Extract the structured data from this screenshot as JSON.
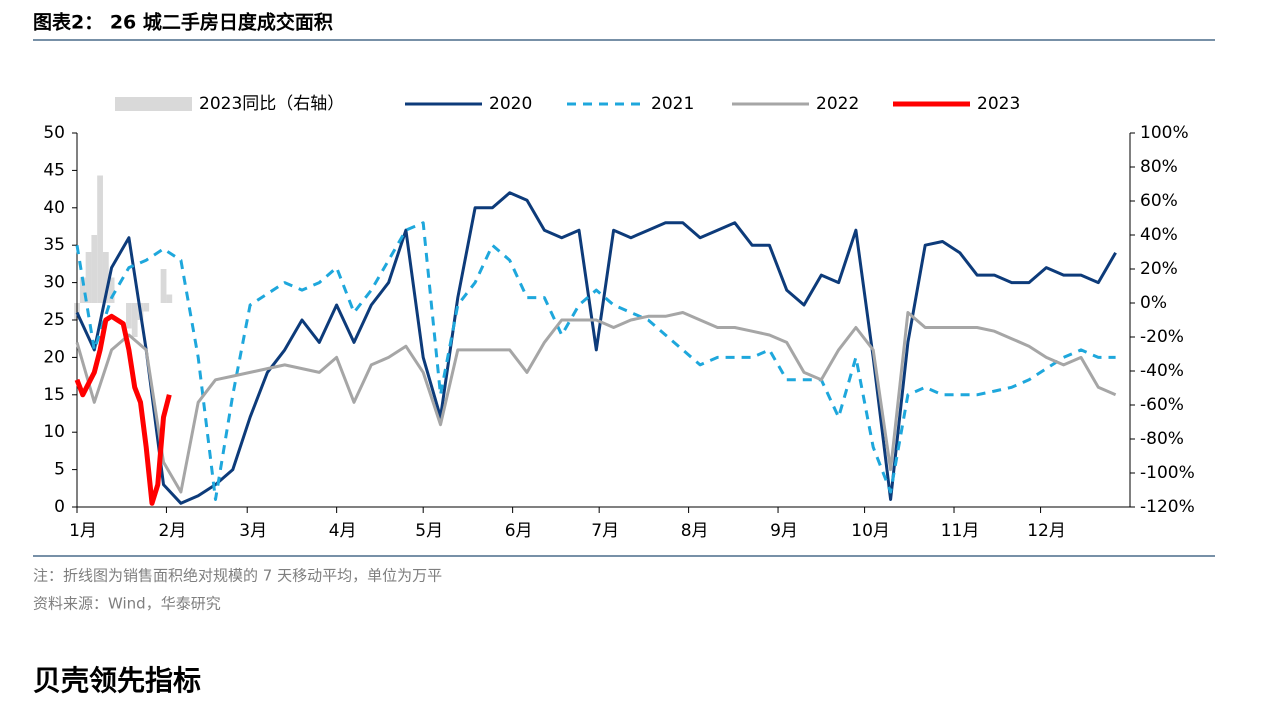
{
  "title": "图表2： 26 城二手房日度成交面积",
  "chart_data": {
    "type": "line",
    "xlim": [
      1,
      366
    ],
    "xticks": [
      {
        "value": 1,
        "label": "1月"
      },
      {
        "value": 32,
        "label": "2月"
      },
      {
        "value": 60,
        "label": "3月"
      },
      {
        "value": 91,
        "label": "4月"
      },
      {
        "value": 121,
        "label": "5月"
      },
      {
        "value": 152,
        "label": "6月"
      },
      {
        "value": 182,
        "label": "7月"
      },
      {
        "value": 213,
        "label": "8月"
      },
      {
        "value": 244,
        "label": "9月"
      },
      {
        "value": 274,
        "label": "10月"
      },
      {
        "value": 305,
        "label": "11月"
      },
      {
        "value": 335,
        "label": "12月"
      }
    ],
    "ylim": [
      0,
      50
    ],
    "yticks": [
      0,
      5,
      10,
      15,
      20,
      25,
      30,
      35,
      40,
      45,
      50
    ],
    "y2lim": [
      -120,
      100
    ],
    "y2ticks": [
      {
        "value": -120,
        "label": "-120%"
      },
      {
        "value": -100,
        "label": "-100%"
      },
      {
        "value": -80,
        "label": "-80%"
      },
      {
        "value": -60,
        "label": "-60%"
      },
      {
        "value": -40,
        "label": "-40%"
      },
      {
        "value": -20,
        "label": "-20%"
      },
      {
        "value": 0,
        "label": "0%"
      },
      {
        "value": 20,
        "label": "20%"
      },
      {
        "value": 40,
        "label": "40%"
      },
      {
        "value": 60,
        "label": "60%"
      },
      {
        "value": 80,
        "label": "80%"
      },
      {
        "value": 100,
        "label": "100%"
      }
    ],
    "x": [
      1,
      7,
      13,
      19,
      25,
      31,
      37,
      43,
      49,
      55,
      61,
      67,
      73,
      79,
      85,
      91,
      97,
      103,
      109,
      115,
      121,
      127,
      133,
      139,
      145,
      151,
      157,
      163,
      169,
      175,
      181,
      187,
      193,
      199,
      205,
      211,
      217,
      223,
      229,
      235,
      241,
      247,
      253,
      259,
      265,
      271,
      277,
      283,
      289,
      295,
      301,
      307,
      313,
      319,
      325,
      331,
      337,
      343,
      349,
      355,
      361
    ],
    "series": [
      {
        "name": "2023同比（右轴）",
        "type": "bar",
        "axis": "y2",
        "color": "#d9d9d9",
        "x": [
          1,
          3,
          5,
          7,
          9,
          11,
          13,
          15,
          17,
          19,
          21,
          23,
          25,
          27,
          29,
          31,
          33
        ],
        "values": [
          -10,
          15,
          30,
          40,
          75,
          30,
          15,
          0,
          0,
          -15,
          -20,
          -10,
          -5,
          0,
          0,
          20,
          5
        ]
      },
      {
        "name": "2020",
        "type": "line",
        "color": "#0d3b7a",
        "values": [
          26,
          21,
          32,
          36,
          21,
          3,
          0.5,
          1.5,
          3,
          5,
          12,
          18,
          21,
          25,
          22,
          27,
          22,
          27,
          30,
          37,
          20,
          12,
          28,
          40,
          40,
          42,
          41,
          37,
          36,
          37,
          21,
          37,
          36,
          37,
          38,
          38,
          36,
          37,
          38,
          35,
          35,
          29,
          27,
          31,
          30,
          37,
          20,
          1,
          22,
          35,
          35.5,
          34,
          31,
          31,
          30,
          30,
          32,
          31,
          31,
          30,
          34
        ]
      },
      {
        "name": "2021",
        "type": "line",
        "dash": true,
        "color": "#1ea7dc",
        "values": [
          35,
          21,
          28,
          32,
          33,
          34.5,
          33,
          20,
          1,
          15,
          27,
          28.5,
          30,
          29,
          30,
          32,
          26,
          29,
          33,
          37,
          38,
          15,
          27,
          30,
          35,
          33,
          28,
          28,
          23,
          27,
          29,
          27,
          26,
          25,
          23,
          21,
          19,
          20,
          20,
          20,
          21,
          17,
          17,
          17,
          12,
          20,
          8,
          2,
          15,
          16,
          15,
          15,
          15,
          15.5,
          16,
          17,
          18.5,
          20,
          21,
          20,
          20
        ]
      },
      {
        "name": "2022",
        "type": "line",
        "color": "#a6a6a6",
        "values": [
          22,
          14,
          21,
          23,
          21,
          6,
          2,
          14,
          17,
          17.5,
          18,
          18.5,
          19,
          18.5,
          18,
          20,
          14,
          19,
          20,
          21.5,
          18,
          11,
          21,
          21,
          21,
          21,
          18,
          22,
          25,
          25,
          25,
          24,
          25,
          25.5,
          25.5,
          26,
          25,
          24,
          24,
          23.5,
          23,
          22,
          18,
          17,
          21,
          24,
          21,
          5,
          26,
          24,
          24,
          24,
          24,
          23.5,
          22.5,
          21.5,
          20,
          19,
          20,
          16,
          15
        ]
      },
      {
        "name": "2023",
        "type": "line",
        "color": "#ff0000",
        "width": 5,
        "x": [
          1,
          3,
          5,
          7,
          9,
          11,
          13,
          15,
          17,
          19,
          21,
          23,
          25,
          27,
          29,
          31,
          33
        ],
        "values": [
          17,
          15,
          16.5,
          18,
          21,
          25,
          25.5,
          25,
          24.5,
          21,
          16,
          14,
          8,
          0.5,
          3,
          12,
          15
        ]
      }
    ]
  },
  "notes": [
    "注：折线图为销售面积绝对规模的 7 天移动平均，单位为万平",
    "资料来源：Wind，华泰研究"
  ],
  "footer": "贝壳领先指标"
}
